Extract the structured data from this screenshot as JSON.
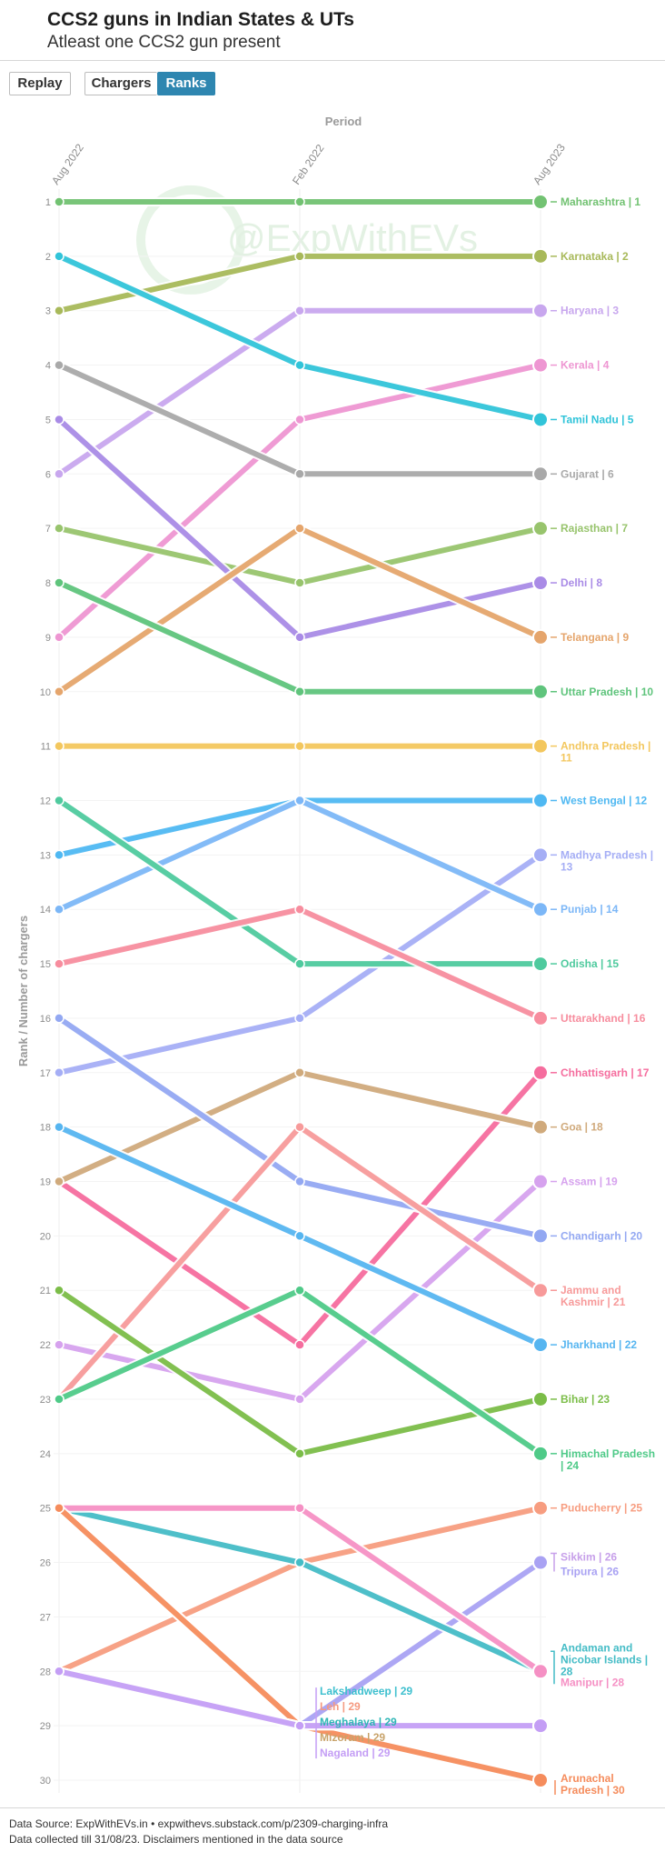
{
  "header": {
    "title": "CCS2 guns in Indian States & UTs",
    "subtitle": "Atleast one CCS2 gun present"
  },
  "controls": {
    "replay_label": "Replay",
    "tabs": [
      {
        "label": "Chargers",
        "active": false
      },
      {
        "label": "Ranks",
        "active": true
      }
    ]
  },
  "footer": {
    "line1": "Data Source: ExpWithEVs.in • expwithevs.substack.com/p/2309-charging-infra",
    "line2": "Data collected till 31/08/23. Disclaimers mentioned in the data source"
  },
  "chart_data": {
    "type": "line",
    "subtype": "bump",
    "watermark": "@ExpWithEVs",
    "xlabel": "Period",
    "ylabel": "Rank / Number of chargers",
    "x": [
      "Aug 2022",
      "Feb 2022",
      "Aug 2023"
    ],
    "ylim": [
      1,
      30
    ],
    "y_ticks": [
      1,
      2,
      3,
      4,
      5,
      6,
      7,
      8,
      9,
      10,
      11,
      12,
      13,
      14,
      15,
      16,
      17,
      18,
      19,
      20,
      21,
      22,
      23,
      24,
      25,
      26,
      27,
      28,
      29,
      30
    ],
    "grid": true,
    "series": [
      {
        "name": "Maharashtra",
        "label": "Maharashtra | 1",
        "values": [
          1,
          1,
          1
        ],
        "color": "#72c272"
      },
      {
        "name": "Karnataka",
        "label": "Karnataka | 2",
        "values": [
          3,
          2,
          2
        ],
        "color": "#a8b95a"
      },
      {
        "name": "Haryana",
        "label": "Haryana | 3",
        "values": [
          6,
          3,
          3
        ],
        "color": "#c8a7ee"
      },
      {
        "name": "Kerala",
        "label": "Kerala | 4",
        "values": [
          9,
          5,
          4
        ],
        "color": "#ee96d2"
      },
      {
        "name": "Tamil Nadu",
        "label": "Tamil Nadu | 5",
        "values": [
          2,
          4,
          5
        ],
        "color": "#31c4d9"
      },
      {
        "name": "Gujarat",
        "label": "Gujarat | 6",
        "values": [
          4,
          6,
          6
        ],
        "color": "#a9a9a9"
      },
      {
        "name": "Rajasthan",
        "label": "Rajasthan | 7",
        "values": [
          7,
          8,
          7
        ],
        "color": "#98c46d"
      },
      {
        "name": "Delhi",
        "label": "Delhi | 8",
        "values": [
          5,
          9,
          8
        ],
        "color": "#a98be6"
      },
      {
        "name": "Telangana",
        "label": "Telangana | 9",
        "values": [
          10,
          7,
          9
        ],
        "color": "#e5a56c"
      },
      {
        "name": "Uttar Pradesh",
        "label": "Uttar Pradesh | 10",
        "values": [
          8,
          10,
          10
        ],
        "color": "#5fc47c"
      },
      {
        "name": "Andhra Pradesh",
        "label": "Andhra Pradesh | 11",
        "values": [
          11,
          11,
          11
        ],
        "color": "#f3c75e"
      },
      {
        "name": "West Bengal",
        "label": "West Bengal | 12",
        "values": [
          13,
          12,
          12
        ],
        "color": "#4fb8f2"
      },
      {
        "name": "Madhya Pradesh",
        "label": "Madhya Pradesh | 13",
        "values": [
          17,
          16,
          13
        ],
        "color": "#a5aef5"
      },
      {
        "name": "Punjab",
        "label": "Punjab | 14",
        "values": [
          14,
          12,
          14
        ],
        "color": "#7cb7f7"
      },
      {
        "name": "Odisha",
        "label": "Odisha | 15",
        "values": [
          12,
          15,
          15
        ],
        "color": "#4fca9e"
      },
      {
        "name": "Uttarakhand",
        "label": "Uttarakhand | 16",
        "values": [
          15,
          14,
          16
        ],
        "color": "#f78d9e"
      },
      {
        "name": "Chhattisgarh",
        "label": "Chhattisgarh | 17",
        "values": [
          19,
          22,
          17
        ],
        "color": "#f56d9e"
      },
      {
        "name": "Goa",
        "label": "Goa | 18",
        "values": [
          19,
          17,
          18
        ],
        "color": "#d0aa7c"
      },
      {
        "name": "Assam",
        "label": "Assam | 19",
        "values": [
          22,
          23,
          19
        ],
        "color": "#d6a2ee"
      },
      {
        "name": "Chandigarh",
        "label": "Chandigarh | 20",
        "values": [
          16,
          19,
          20
        ],
        "color": "#93a8f2"
      },
      {
        "name": "Jammu and Kashmir",
        "label": "Jammu and Kashmir | 21",
        "values": [
          23,
          18,
          21
        ],
        "color": "#f79a9a"
      },
      {
        "name": "Jharkhand",
        "label": "Jharkhand | 22",
        "values": [
          18,
          20,
          22
        ],
        "color": "#56b5f0"
      },
      {
        "name": "Bihar",
        "label": "Bihar | 23",
        "values": [
          21,
          24,
          23
        ],
        "color": "#7bbd48"
      },
      {
        "name": "Himachal Pradesh",
        "label": "Himachal Pradesh | 24",
        "values": [
          23,
          21,
          24
        ],
        "color": "#4fca88"
      },
      {
        "name": "Puducherry",
        "label": "Puducherry | 25",
        "values": [
          28,
          26,
          25
        ],
        "color": "#f79d80"
      },
      {
        "name": "Sikkim",
        "label": "Sikkim | 26",
        "values": [
          25,
          29,
          26
        ],
        "color": "#c7a0ea"
      },
      {
        "name": "Tripura",
        "label": "Tripura | 26",
        "values": [
          28,
          29,
          26
        ],
        "color": "#a9a2f3"
      },
      {
        "name": "Andaman and Nicobar Islands",
        "label": "Andaman and Nicobar Islands | 28",
        "values": [
          25,
          26,
          28
        ],
        "color": "#44bcc6"
      },
      {
        "name": "Manipur",
        "label": "Manipur | 28",
        "values": [
          25,
          25,
          28
        ],
        "color": "#f590c4"
      },
      {
        "name": "Arunachal Pradesh",
        "label": "Arunachal Pradesh | 30",
        "values": [
          25,
          29,
          30
        ],
        "color": "#f58c5c"
      },
      {
        "name": "Lakshadweep",
        "label": "Lakshadweep | 29",
        "values": [
          28,
          29,
          29
        ],
        "color": "#3dbfce"
      },
      {
        "name": "Leh",
        "label": "Leh | 29",
        "values": [
          28,
          29,
          29
        ],
        "color": "#f59a80"
      },
      {
        "name": "Meghalaya",
        "label": "Meghalaya | 29",
        "values": [
          28,
          29,
          29
        ],
        "color": "#2fb6b6"
      },
      {
        "name": "Mizoram",
        "label": "Mizoram | 29",
        "values": [
          28,
          29,
          29
        ],
        "color": "#c8a36a"
      },
      {
        "name": "Nagaland",
        "label": "Nagaland | 29",
        "values": [
          28,
          29,
          29
        ],
        "color": "#c49ef5"
      }
    ]
  }
}
